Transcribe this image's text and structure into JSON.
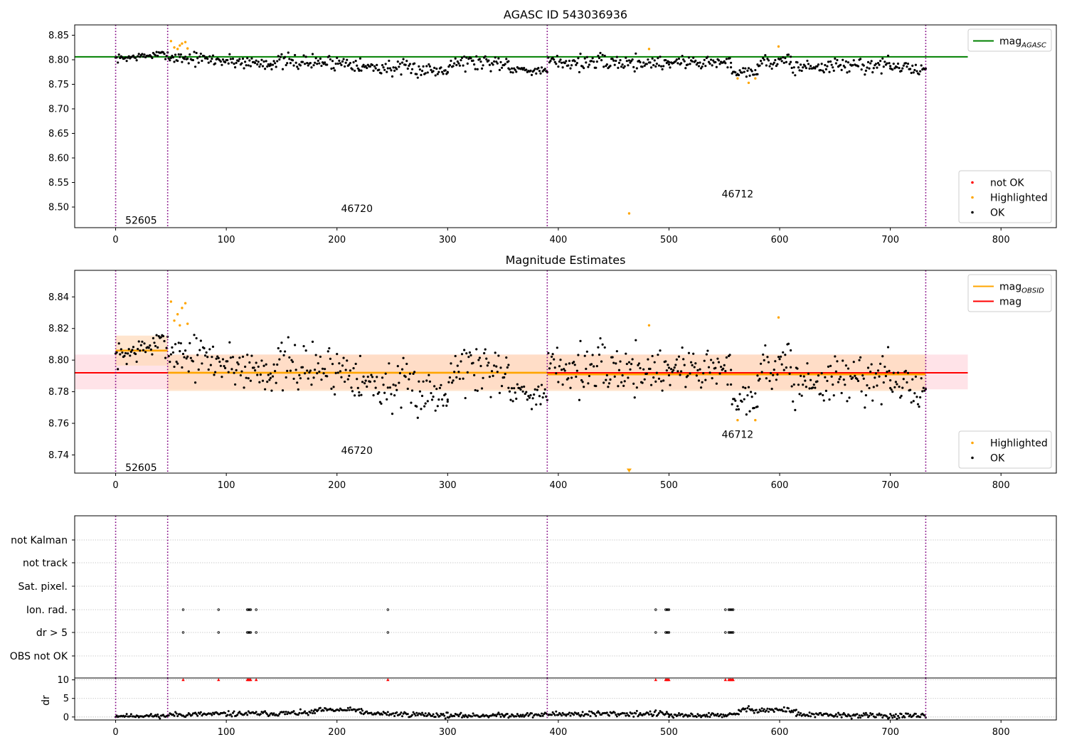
{
  "colors": {
    "ok": "#000000",
    "highlighted": "#ffa500",
    "not_ok": "#ff0000",
    "agasc_line": "#008000",
    "mag_line": "#ff0000",
    "obsid_line": "#ffa500",
    "obs_boundary": "#800080",
    "mag_band": "#ffc0cb",
    "obsid_band": "#ffdab9",
    "grid": "#b0b0b0"
  },
  "chart_data": [
    {
      "id": "top",
      "type": "scatter",
      "title": "AGASC ID 543036936",
      "xlabel": "",
      "ylabel": "",
      "xlim": [
        -37,
        850
      ],
      "ylim": [
        8.458,
        8.871
      ],
      "x_ticks": [
        0,
        100,
        200,
        300,
        400,
        500,
        600,
        700,
        800
      ],
      "y_ticks": [
        8.5,
        8.55,
        8.6,
        8.65,
        8.7,
        8.75,
        8.8,
        8.85
      ],
      "y_tick_labels": [
        "8.50",
        "8.55",
        "8.60",
        "8.65",
        "8.70",
        "8.75",
        "8.80",
        "8.85"
      ],
      "obs_boundaries": [
        0,
        47,
        390,
        732
      ],
      "obsid_labels": [
        {
          "text": "52605",
          "x": 23,
          "y": 8.473
        },
        {
          "text": "46720",
          "x": 218,
          "y": 8.497
        },
        {
          "text": "46712",
          "x": 562,
          "y": 8.527
        }
      ],
      "hlines": [
        {
          "name": "mag_AGASC",
          "y": 8.806,
          "x": [
            -37,
            770
          ],
          "color": "#008000"
        }
      ],
      "ok_segments": [
        {
          "x": [
            0,
            47
          ],
          "y": [
            8.802,
            8.812
          ],
          "noise": 0.004
        },
        {
          "x": [
            48,
            140
          ],
          "y": [
            8.806,
            8.792
          ],
          "noise": 0.007
        },
        {
          "x": [
            140,
            220
          ],
          "y": [
            8.796,
            8.794
          ],
          "noise": 0.008
        },
        {
          "x": [
            220,
            300
          ],
          "y": [
            8.786,
            8.778
          ],
          "noise": 0.008
        },
        {
          "x": [
            300,
            355
          ],
          "y": [
            8.796,
            8.795
          ],
          "noise": 0.009
        },
        {
          "x": [
            355,
            390
          ],
          "y": [
            8.783,
            8.776
          ],
          "noise": 0.004
        },
        {
          "x": [
            391,
            500
          ],
          "y": [
            8.795,
            8.794
          ],
          "noise": 0.008
        },
        {
          "x": [
            500,
            556
          ],
          "y": [
            8.796,
            8.794
          ],
          "noise": 0.007
        },
        {
          "x": [
            556,
            580
          ],
          "y": [
            8.778,
            8.776
          ],
          "noise": 0.006
        },
        {
          "x": [
            580,
            610
          ],
          "y": [
            8.794,
            8.798
          ],
          "noise": 0.007
        },
        {
          "x": [
            610,
            700
          ],
          "y": [
            8.785,
            8.79
          ],
          "noise": 0.008
        },
        {
          "x": [
            700,
            732
          ],
          "y": [
            8.786,
            8.779
          ],
          "noise": 0.006
        }
      ],
      "highlighted_points": [
        [
          50,
          8.838
        ],
        [
          53,
          8.825
        ],
        [
          56,
          8.822
        ],
        [
          58,
          8.829
        ],
        [
          60,
          8.833
        ],
        [
          63,
          8.836
        ],
        [
          65,
          8.823
        ],
        [
          464,
          8.487
        ],
        [
          482,
          8.822
        ],
        [
          562,
          8.762
        ],
        [
          572,
          8.753
        ],
        [
          578,
          8.762
        ],
        [
          599,
          8.827
        ]
      ],
      "not_ok_points": [],
      "legends": [
        {
          "position": "top-right",
          "entries": [
            {
              "label": "mag",
              "subscript": "AGASC",
              "kind": "line",
              "color": "#008000"
            }
          ]
        },
        {
          "position": "bottom-right",
          "entries": [
            {
              "label": "not OK",
              "kind": "dot",
              "color": "#ff0000"
            },
            {
              "label": "Highlighted",
              "kind": "dot",
              "color": "#ffa500"
            },
            {
              "label": "OK",
              "kind": "dot",
              "color": "#000000"
            }
          ]
        }
      ]
    },
    {
      "id": "middle",
      "type": "scatter",
      "title": "Magnitude Estimates",
      "xlabel": "",
      "ylabel": "",
      "xlim": [
        -37,
        850
      ],
      "ylim": [
        8.7285,
        8.8568
      ],
      "x_ticks": [
        0,
        100,
        200,
        300,
        400,
        500,
        600,
        700,
        800
      ],
      "y_ticks": [
        8.74,
        8.76,
        8.78,
        8.8,
        8.82,
        8.84
      ],
      "y_tick_labels": [
        "8.74",
        "8.76",
        "8.78",
        "8.80",
        "8.82",
        "8.84"
      ],
      "obs_boundaries": [
        0,
        47,
        390,
        732
      ],
      "obsid_labels": [
        {
          "text": "52605",
          "x": 23,
          "y": 8.732
        },
        {
          "text": "46720",
          "x": 218,
          "y": 8.743
        },
        {
          "text": "46712",
          "x": 562,
          "y": 8.753
        }
      ],
      "bands": [
        {
          "x": [
            -37,
            770
          ],
          "y": [
            8.7815,
            8.8035
          ],
          "color": "#ffc0cb",
          "opacity": 0.45
        },
        {
          "x": [
            0,
            47
          ],
          "y": [
            8.7965,
            8.8155
          ],
          "color": "#ffdab9",
          "opacity": 0.7
        },
        {
          "x": [
            47,
            390
          ],
          "y": [
            8.7805,
            8.8035
          ],
          "color": "#ffdab9",
          "opacity": 0.7
        },
        {
          "x": [
            390,
            732
          ],
          "y": [
            8.7805,
            8.8035
          ],
          "color": "#ffdab9",
          "opacity": 0.7
        }
      ],
      "hlines": [
        {
          "name": "mag",
          "y": 8.792,
          "x": [
            -37,
            770
          ],
          "color": "#ff0000"
        },
        {
          "name": "mag_OBSID",
          "y": 8.806,
          "x": [
            0,
            47
          ],
          "color": "#ffa500"
        },
        {
          "name": "mag_OBSID",
          "y": 8.792,
          "x": [
            47,
            390
          ],
          "color": "#ffa500"
        },
        {
          "name": "mag_OBSID",
          "y": 8.791,
          "x": [
            390,
            732
          ],
          "color": "#ffa500"
        }
      ],
      "ok_segments": [
        {
          "x": [
            0,
            47
          ],
          "y": [
            8.802,
            8.812
          ],
          "noise": 0.004
        },
        {
          "x": [
            48,
            140
          ],
          "y": [
            8.806,
            8.792
          ],
          "noise": 0.007
        },
        {
          "x": [
            140,
            220
          ],
          "y": [
            8.796,
            8.794
          ],
          "noise": 0.008
        },
        {
          "x": [
            220,
            300
          ],
          "y": [
            8.786,
            8.778
          ],
          "noise": 0.008
        },
        {
          "x": [
            300,
            355
          ],
          "y": [
            8.796,
            8.795
          ],
          "noise": 0.009
        },
        {
          "x": [
            355,
            390
          ],
          "y": [
            8.783,
            8.776
          ],
          "noise": 0.004
        },
        {
          "x": [
            391,
            500
          ],
          "y": [
            8.795,
            8.794
          ],
          "noise": 0.008
        },
        {
          "x": [
            500,
            556
          ],
          "y": [
            8.796,
            8.794
          ],
          "noise": 0.007
        },
        {
          "x": [
            556,
            580
          ],
          "y": [
            8.778,
            8.776
          ],
          "noise": 0.006
        },
        {
          "x": [
            580,
            610
          ],
          "y": [
            8.794,
            8.798
          ],
          "noise": 0.007
        },
        {
          "x": [
            610,
            700
          ],
          "y": [
            8.785,
            8.79
          ],
          "noise": 0.008
        },
        {
          "x": [
            700,
            732
          ],
          "y": [
            8.786,
            8.779
          ],
          "noise": 0.006
        }
      ],
      "highlighted_points": [
        [
          50,
          8.837
        ],
        [
          53,
          8.825
        ],
        [
          56,
          8.829
        ],
        [
          58,
          8.822
        ],
        [
          60,
          8.833
        ],
        [
          63,
          8.836
        ],
        [
          65,
          8.823
        ],
        [
          482,
          8.822
        ],
        [
          562,
          8.762
        ],
        [
          578,
          8.762
        ],
        [
          599,
          8.827
        ]
      ],
      "highlighted_markers": [
        {
          "x": 464,
          "y": 8.73,
          "shape": "triangle-down"
        }
      ],
      "legends": [
        {
          "position": "top-right",
          "entries": [
            {
              "label": "mag",
              "subscript": "OBSID",
              "kind": "line",
              "color": "#ffa500"
            },
            {
              "label": "mag",
              "kind": "line",
              "color": "#ff0000"
            }
          ]
        },
        {
          "position": "bottom-right",
          "entries": [
            {
              "label": "Highlighted",
              "kind": "dot",
              "color": "#ffa500"
            },
            {
              "label": "OK",
              "kind": "dot",
              "color": "#000000"
            }
          ]
        }
      ]
    },
    {
      "id": "flags",
      "type": "scatter",
      "title": "",
      "xlabel": "",
      "ylabel": "",
      "xlim": [
        -37,
        850
      ],
      "obs_boundaries": [
        0,
        47,
        390,
        732
      ],
      "categories": [
        "not Kalman",
        "not track",
        "Sat. pixel.",
        "Ion. rad.",
        "dr > 5",
        "OBS not OK"
      ],
      "flag_points": {
        "Ion. rad.": [
          61,
          93,
          119,
          120,
          121,
          122,
          127,
          246,
          488,
          497,
          498,
          499,
          500,
          551,
          554,
          555,
          556,
          557,
          558
        ],
        "dr > 5": [
          61,
          93,
          119,
          120,
          121,
          122,
          127,
          246,
          488,
          497,
          498,
          499,
          500,
          551,
          554,
          555,
          556,
          557,
          558
        ]
      }
    },
    {
      "id": "dr",
      "type": "scatter",
      "title": "",
      "xlabel": "",
      "ylabel": "dr",
      "xlim": [
        -37,
        850
      ],
      "ylim": [
        -0.8,
        10.5
      ],
      "x_ticks": [
        0,
        100,
        200,
        300,
        400,
        500,
        600,
        700,
        800
      ],
      "y_ticks": [
        0,
        5,
        10
      ],
      "y_tick_labels": [
        "0",
        "5",
        "10"
      ],
      "obs_boundaries": [
        0,
        47,
        390,
        732
      ],
      "dr_segments": [
        {
          "x": [
            0,
            47
          ],
          "y": [
            0.3,
            0.3
          ],
          "noise": 0.25
        },
        {
          "x": [
            48,
            180
          ],
          "y": [
            0.6,
            1.1
          ],
          "noise": 0.35
        },
        {
          "x": [
            180,
            222
          ],
          "y": [
            1.8,
            1.9
          ],
          "noise": 0.3
        },
        {
          "x": [
            222,
            300
          ],
          "y": [
            1.0,
            0.5
          ],
          "noise": 0.35
        },
        {
          "x": [
            300,
            390
          ],
          "y": [
            0.3,
            0.6
          ],
          "noise": 0.3
        },
        {
          "x": [
            391,
            500
          ],
          "y": [
            0.8,
            0.9
          ],
          "noise": 0.4
        },
        {
          "x": [
            500,
            563
          ],
          "y": [
            0.3,
            0.6
          ],
          "noise": 0.3
        },
        {
          "x": [
            563,
            615
          ],
          "y": [
            2.0,
            1.8
          ],
          "noise": 0.4
        },
        {
          "x": [
            615,
            732
          ],
          "y": [
            0.6,
            0.2
          ],
          "noise": 0.35
        }
      ],
      "not_ok_points_x": [
        61,
        93,
        119,
        120,
        121,
        122,
        127,
        246,
        488,
        497,
        498,
        499,
        500,
        551,
        554,
        555,
        556,
        557,
        558
      ],
      "not_ok_value": 10
    }
  ]
}
